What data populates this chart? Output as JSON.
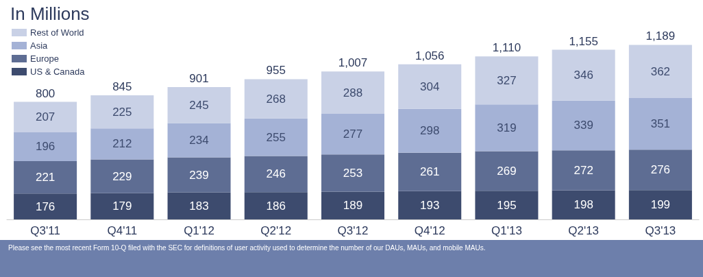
{
  "chart_data": {
    "type": "bar",
    "title": "In Millions",
    "stacked": true,
    "data_labels": true,
    "legend": "top left",
    "categories": [
      "Q3'11",
      "Q4'11",
      "Q1'12",
      "Q2'12",
      "Q3'12",
      "Q4'12",
      "Q1'13",
      "Q2'13",
      "Q3'13"
    ],
    "series": [
      {
        "name": "US & Canada",
        "color": "#3d4b6e",
        "values": [
          176,
          179,
          183,
          186,
          189,
          193,
          195,
          198,
          199
        ]
      },
      {
        "name": "Europe",
        "color": "#5e6d93",
        "values": [
          221,
          229,
          239,
          246,
          253,
          261,
          269,
          272,
          276
        ]
      },
      {
        "name": "Asia",
        "color": "#a4b2d6",
        "values": [
          196,
          212,
          234,
          255,
          277,
          298,
          319,
          339,
          351
        ]
      },
      {
        "name": "Rest of World",
        "color": "#c9d1e6",
        "values": [
          207,
          225,
          245,
          268,
          288,
          304,
          327,
          346,
          362
        ]
      }
    ],
    "totals": [
      "800",
      "845",
      "901",
      "955",
      "1,007",
      "1,056",
      "1,110",
      "1,155",
      "1,189"
    ],
    "annotations": [
      "Please see the most recent Form 10-Q filed with the SEC for definitions of user activity used to determine the number of our DAUs, MAUs, and mobile MAUs."
    ]
  }
}
